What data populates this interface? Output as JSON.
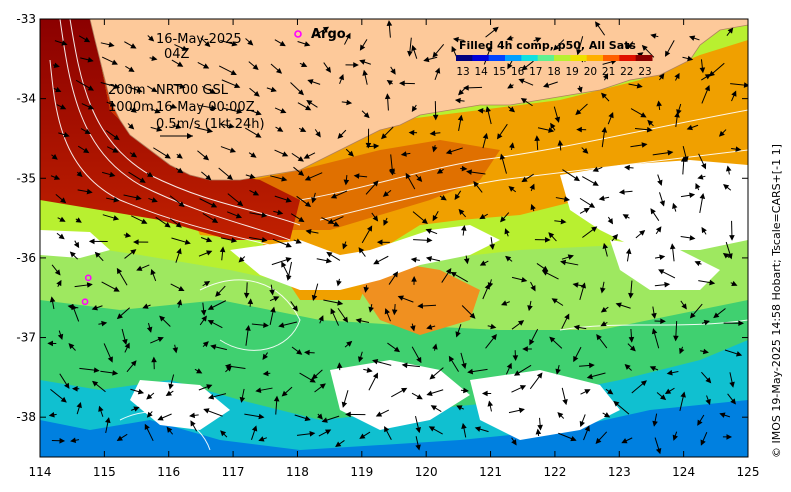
{
  "map": {
    "date": "16-May-2025",
    "hour": "04Z",
    "depth_shallow": "200m",
    "depth_deep": "1000m",
    "product": "NRT00 GSL",
    "product_time": "16-May 00:00Z",
    "vector_scale": "0.5m/s (1kt 24h)",
    "argo_label": "Argo",
    "credit": "© IMOS 19-May-2025 14:58 Hobart; Tscale=CARS+[-1 1]"
  },
  "colorbar": {
    "title": "Filled 4h comp, p50, All Sats",
    "ticks": [
      "13",
      "14",
      "15",
      "16",
      "17",
      "18",
      "19",
      "20",
      "21",
      "22",
      "23"
    ],
    "colors": [
      "#00007f",
      "#0000d8",
      "#0044ff",
      "#00a0ff",
      "#10e0e0",
      "#60f090",
      "#b8f030",
      "#f0e000",
      "#ffb000",
      "#ff6000",
      "#e01000",
      "#8b0000"
    ]
  },
  "axes": {
    "x_ticks": [
      "114",
      "115",
      "116",
      "117",
      "118",
      "119",
      "120",
      "121",
      "122",
      "123",
      "124",
      "125"
    ],
    "y_ticks": [
      "-33",
      "-34",
      "-35",
      "-36",
      "-37",
      "-38"
    ],
    "xlim": [
      114,
      125
    ],
    "ylim": [
      -38.5,
      -33
    ]
  },
  "argo_floats": [
    {
      "lon": 114.75,
      "lat": -36.25
    },
    {
      "lon": 114.7,
      "lat": -36.55
    }
  ],
  "colors": {
    "land": "#fdc99a",
    "coast": "#b08060",
    "argo": "#ff00ff"
  }
}
